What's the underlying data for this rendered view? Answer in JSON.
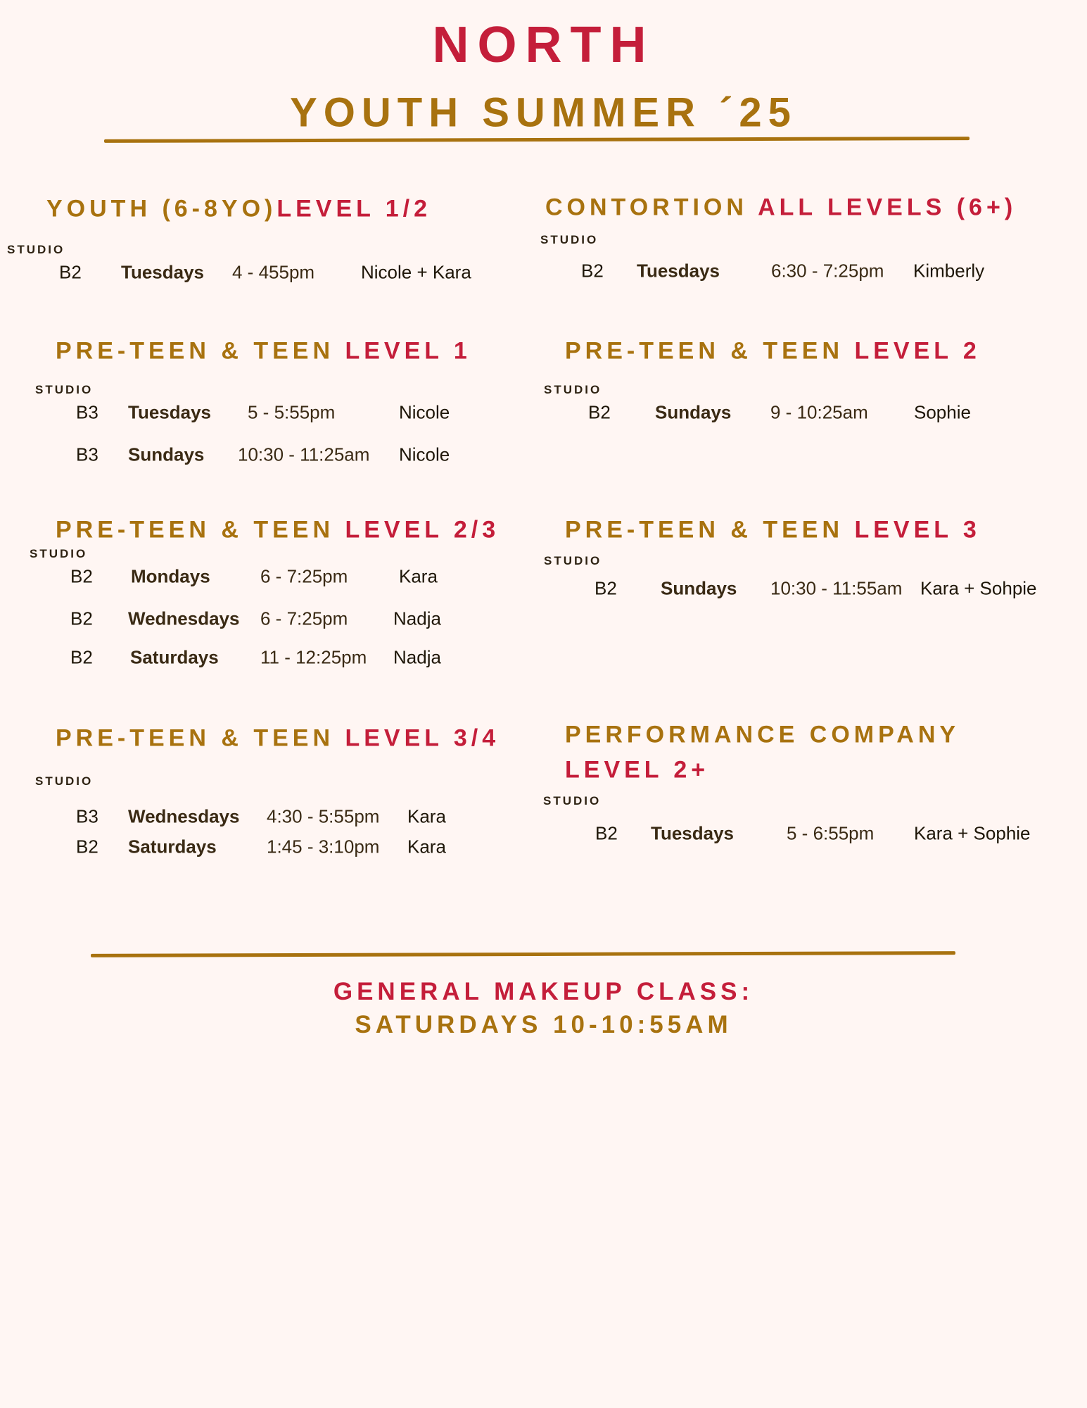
{
  "header": {
    "title": "NORTH",
    "subtitle": "YOUTH SUMMER ´25"
  },
  "studio_label": "STUDIO",
  "sections": [
    {
      "title_gold": "YOUTH (6-8YO)",
      "title_red": "LEVEL 1/2",
      "rows": [
        {
          "studio": "B2",
          "day": "Tuesdays",
          "time": "4 - 455pm",
          "instructor": "Nicole + Kara"
        }
      ]
    },
    {
      "title_gold": "PRE-TEEN & TEEN ",
      "title_red": "LEVEL 1",
      "rows": [
        {
          "studio": "B3",
          "day": "Tuesdays",
          "time": "5 - 5:55pm",
          "instructor": "Nicole"
        },
        {
          "studio": "B3",
          "day": "Sundays",
          "time": "10:30 - 11:25am",
          "instructor": "Nicole"
        }
      ]
    },
    {
      "title_gold": "PRE-TEEN & TEEN ",
      "title_red": "LEVEL 2/3",
      "rows": [
        {
          "studio": "B2",
          "day": "Mondays",
          "time": "6 - 7:25pm",
          "instructor": "Kara"
        },
        {
          "studio": "B2",
          "day": "Wednesdays",
          "time": "6 - 7:25pm",
          "instructor": "Nadja"
        },
        {
          "studio": "B2",
          "day": "Saturdays",
          "time": "11 - 12:25pm",
          "instructor": "Nadja"
        }
      ]
    },
    {
      "title_gold": "PRE-TEEN & TEEN ",
      "title_red": "LEVEL 3/4",
      "rows": [
        {
          "studio": "B3",
          "day": "Wednesdays",
          "time": "4:30 - 5:55pm",
          "instructor": "Kara"
        },
        {
          "studio": "B2",
          "day": "Saturdays",
          "time": "1:45 - 3:10pm",
          "instructor": "Kara"
        }
      ]
    },
    {
      "title_gold": "CONTORTION ",
      "title_red": "ALL LEVELS (6+)",
      "rows": [
        {
          "studio": "B2",
          "day": "Tuesdays",
          "time": "6:30 - 7:25pm",
          "instructor": "Kimberly"
        }
      ]
    },
    {
      "title_gold": "PRE-TEEN & TEEN ",
      "title_red": "LEVEL 2",
      "rows": [
        {
          "studio": "B2",
          "day": "Sundays",
          "time": "9 - 10:25am",
          "instructor": "Sophie"
        }
      ]
    },
    {
      "title_gold": "PRE-TEEN & TEEN ",
      "title_red": "LEVEL 3",
      "rows": [
        {
          "studio": "B2",
          "day": "Sundays",
          "time": "10:30 - 11:55am",
          "instructor": "Kara + Sohpie"
        }
      ]
    },
    {
      "title_gold": "PERFORMANCE COMPANY",
      "title_red": "LEVEL 2+",
      "rows": [
        {
          "studio": "B2",
          "day": "Tuesdays",
          "time": "5 - 6:55pm",
          "instructor": "Kara + Sophie"
        }
      ]
    }
  ],
  "footer": {
    "line1": "GENERAL MAKEUP CLASS:",
    "line2": "SATURDAYS 10-10:55AM"
  },
  "colors": {
    "background": "#FFF6F3",
    "gold": "#A8720F",
    "red": "#C41E3A",
    "text": "#3A2A14"
  }
}
